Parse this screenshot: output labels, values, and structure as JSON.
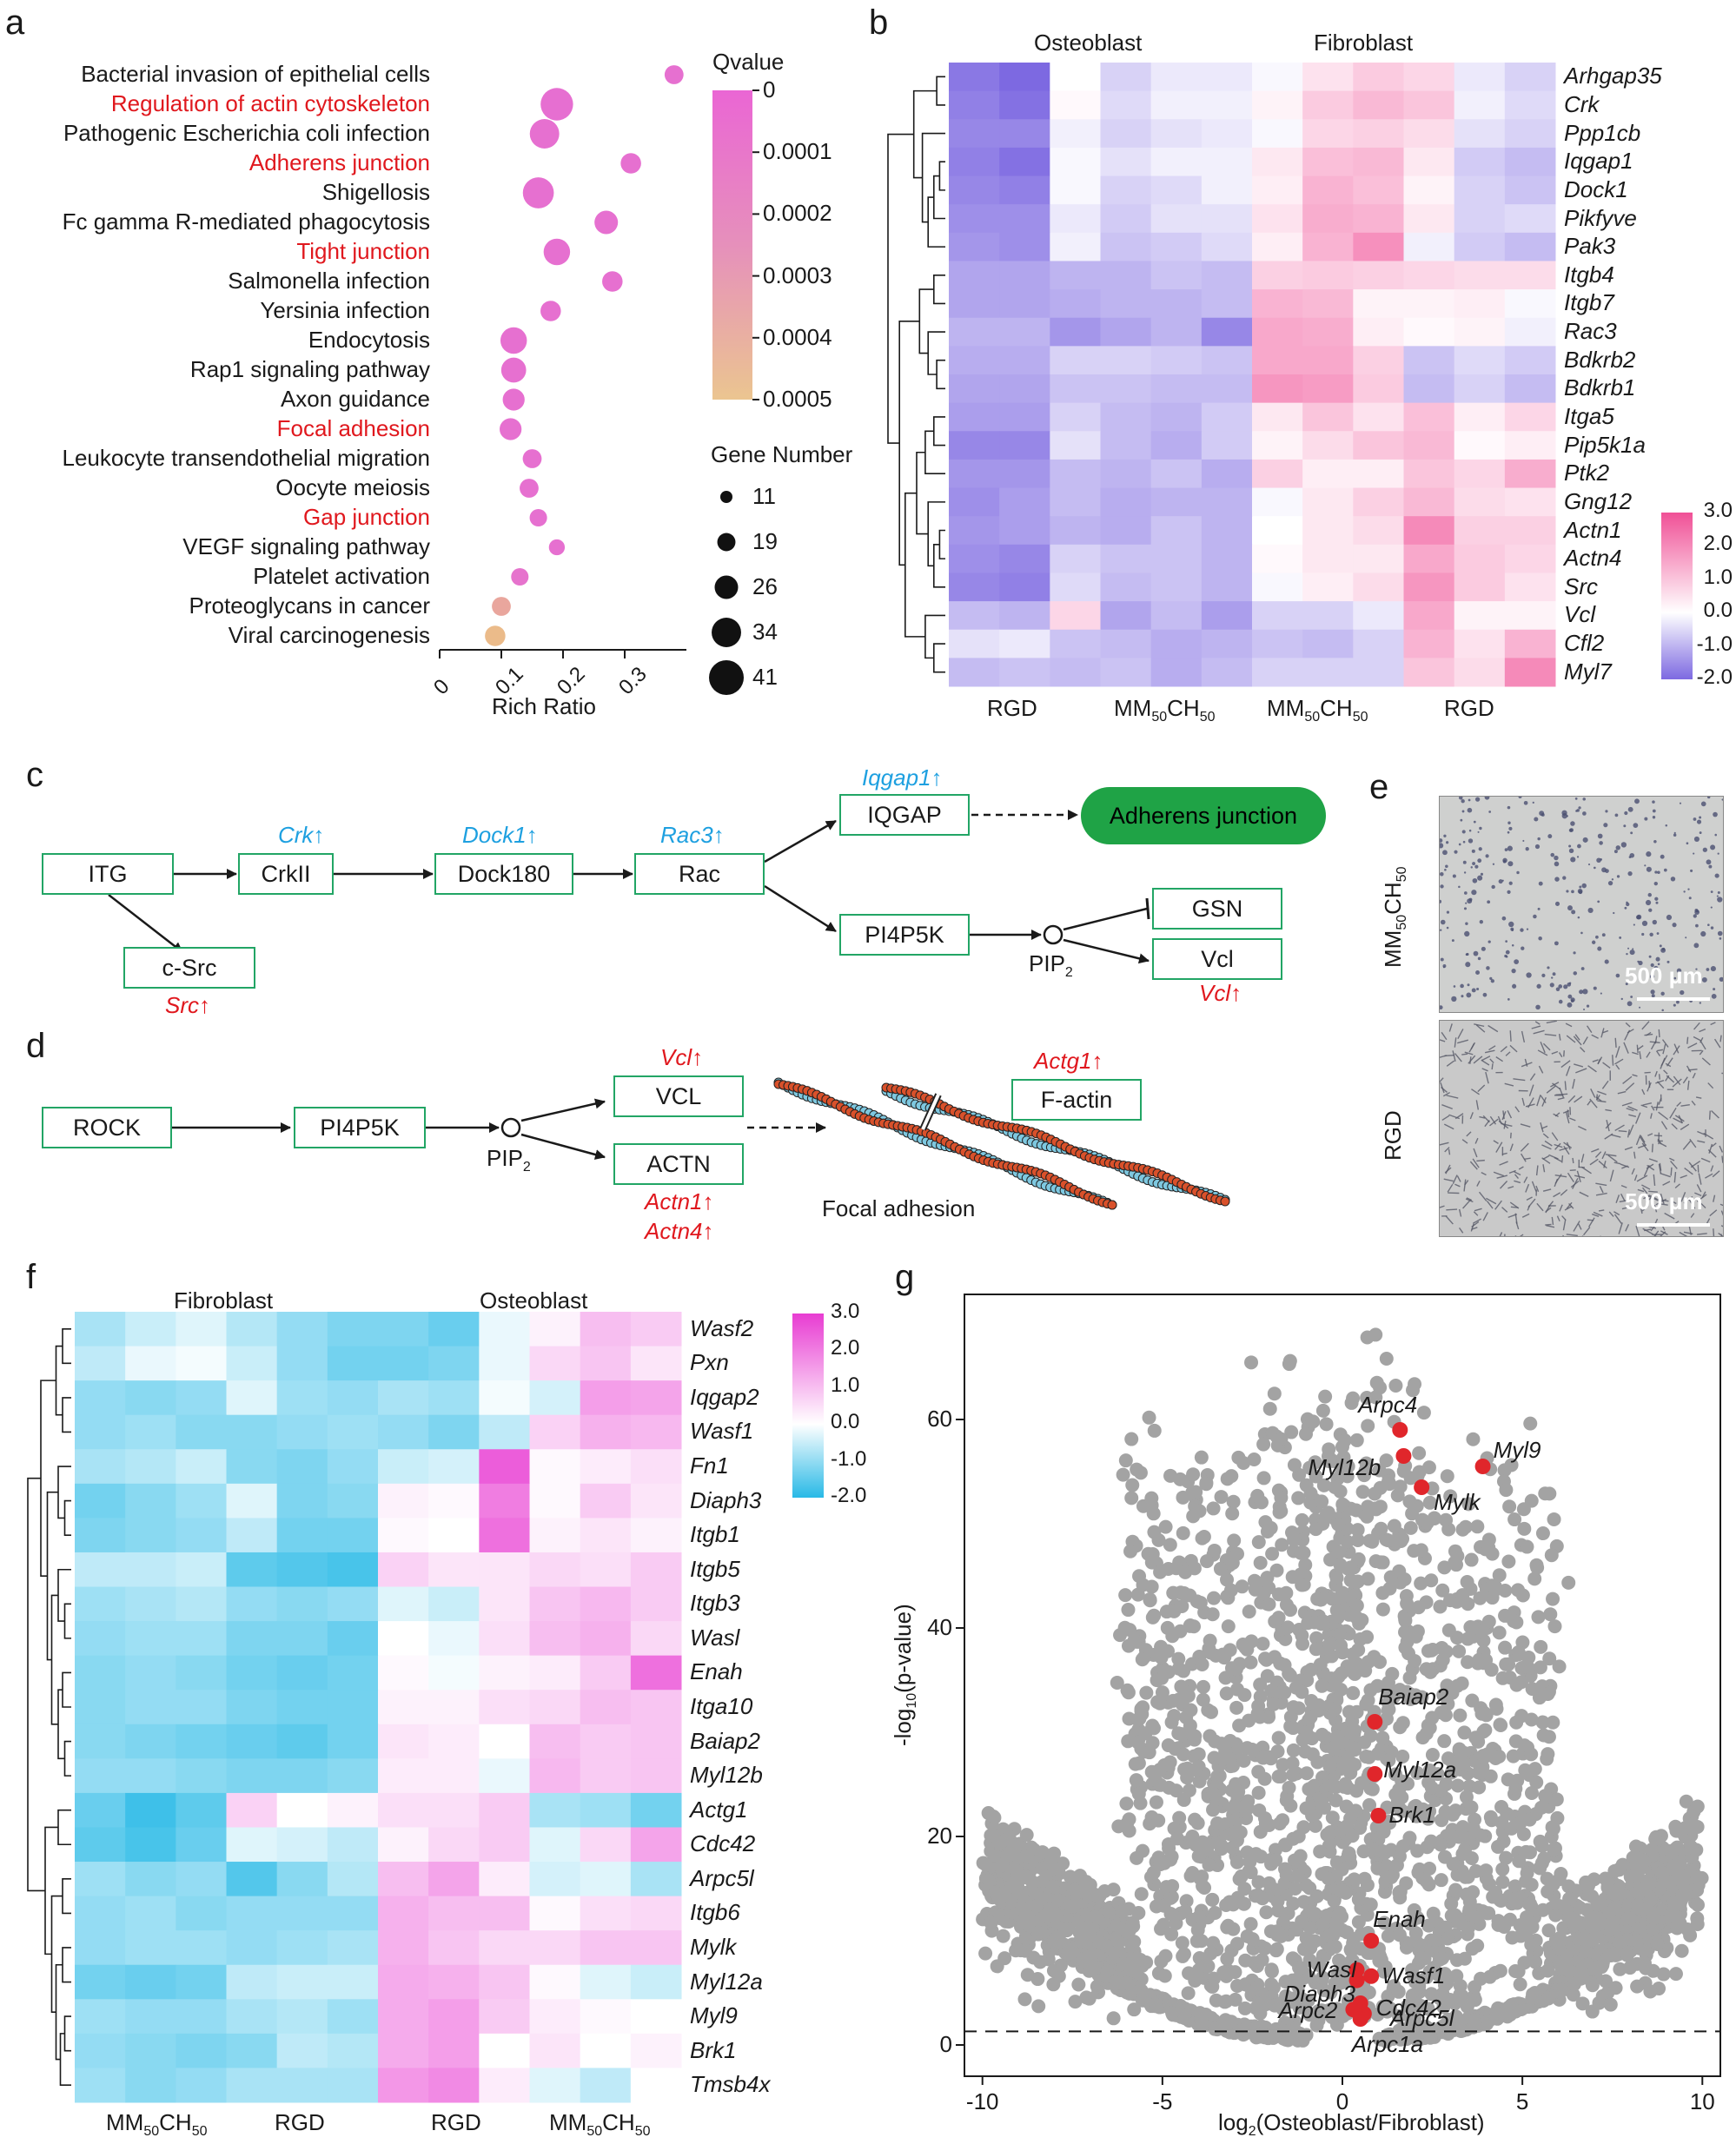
{
  "panels": {
    "a": "a",
    "b": "b",
    "c": "c",
    "d": "d",
    "e": "e",
    "f": "f",
    "g": "g"
  },
  "colors": {
    "red": "#e0181e",
    "blue": "#1ea0e0",
    "green": "#1fa346",
    "box_border": "#22a565"
  },
  "panel_a": {
    "chart_data": {
      "type": "scatter",
      "title": "",
      "xlabel": "Rich Ratio",
      "xticks": [
        "0",
        "0.1",
        "0.2",
        "0.3"
      ],
      "xlim": [
        0,
        0.4
      ],
      "terms": [
        "Bacterial invasion of epithelial cells",
        "Regulation of actin cytoskeleton",
        "Pathogenic Escherichia coli infection",
        "Adherens junction",
        "Shigellosis",
        "Fc gamma R-mediated phagocytosis",
        "Tight junction",
        "Salmonella infection",
        "Yersinia infection",
        "Endocytosis",
        "Rap1 signaling pathway",
        "Axon guidance",
        "Focal adhesion",
        "Leukocyte transendothelial migration",
        "Oocyte meiosis",
        "Gap junction",
        "VEGF signaling pathway",
        "Platelet activation",
        "Proteoglycans in cancer",
        "Viral carcinogenesis"
      ],
      "highlighted": [
        false,
        true,
        false,
        true,
        false,
        false,
        true,
        false,
        false,
        false,
        false,
        false,
        true,
        false,
        false,
        true,
        false,
        false,
        false,
        false
      ],
      "rich_ratio": [
        0.38,
        0.19,
        0.17,
        0.31,
        0.16,
        0.27,
        0.19,
        0.28,
        0.18,
        0.12,
        0.12,
        0.12,
        0.115,
        0.15,
        0.145,
        0.16,
        0.19,
        0.13,
        0.1,
        0.09
      ],
      "gene_number": [
        20,
        38,
        34,
        22,
        36,
        26,
        30,
        22,
        22,
        30,
        28,
        24,
        24,
        20,
        20,
        18,
        16,
        18,
        20,
        22
      ],
      "qvalue": [
        1e-05,
        5e-06,
        1e-05,
        1e-05,
        1e-05,
        1e-05,
        1e-05,
        1e-05,
        1e-05,
        1e-05,
        1e-05,
        1e-05,
        1e-05,
        1e-05,
        1e-05,
        1e-05,
        1e-05,
        3e-05,
        0.00033,
        0.00045
      ],
      "legend_color_title": "Qvalue",
      "legend_color_ticks": [
        "0",
        "0.0001",
        "0.0002",
        "0.0003",
        "0.0004",
        "0.0005"
      ],
      "legend_size_title": "Gene Number",
      "legend_size_ticks": [
        "11",
        "19",
        "26",
        "34",
        "41"
      ]
    }
  },
  "panel_b": {
    "group_top": [
      "Osteoblast",
      "Fibroblast"
    ],
    "group_bottom": [
      "RGD",
      "MM50CH50",
      "MM50CH50",
      "RGD"
    ],
    "genes": [
      "Arhgap35",
      "Crk",
      "Ppp1cb",
      "Iqgap1",
      "Dock1",
      "Pikfyve",
      "Pak3",
      "Itgb4",
      "Itgb7",
      "Rac3",
      "Bdkrb2",
      "Bdkrb1",
      "Itga5",
      "Pip5k1a",
      "Ptk2",
      "Gng12",
      "Actn1",
      "Actn4",
      "Src",
      "Vcl",
      "Cfl2",
      "Myl7"
    ],
    "scale_ticks": [
      "3.0",
      "2.0",
      "1.0",
      "0.0",
      "-1.0",
      "-2.0"
    ],
    "chart_data": {
      "type": "heatmap",
      "rows": [
        "Arhgap35",
        "Crk",
        "Ppp1cb",
        "Iqgap1",
        "Dock1",
        "Pikfyve",
        "Pak3",
        "Itgb4",
        "Itgb7",
        "Rac3",
        "Bdkrb2",
        "Bdkrb1",
        "Itga5",
        "Pip5k1a",
        "Ptk2",
        "Gng12",
        "Actn1",
        "Actn4",
        "Src",
        "Vcl",
        "Cfl2",
        "Myl7"
      ],
      "columns": 12,
      "values": [
        [
          -1.8,
          -2.0,
          0,
          -0.6,
          -0.3,
          -0.3,
          -0.1,
          0.5,
          0.9,
          0.7,
          -0.3,
          -0.6
        ],
        [
          -1.7,
          -1.9,
          0.1,
          -0.5,
          -0.2,
          -0.2,
          0.2,
          0.9,
          1.2,
          1.0,
          -0.2,
          -0.5
        ],
        [
          -1.6,
          -1.6,
          -0.2,
          -0.6,
          -0.4,
          -0.3,
          -0.1,
          0.7,
          0.8,
          0.6,
          -0.4,
          -0.6
        ],
        [
          -1.7,
          -1.9,
          -0.1,
          -0.4,
          -0.2,
          -0.2,
          0.4,
          1.1,
          1.2,
          0.4,
          -0.7,
          -0.9
        ],
        [
          -1.6,
          -1.7,
          -0.1,
          -0.6,
          -0.5,
          -0.2,
          0.3,
          1.3,
          1.1,
          0.2,
          -0.6,
          -0.8
        ],
        [
          -1.5,
          -1.5,
          -0.3,
          -0.7,
          -0.4,
          -0.4,
          0.5,
          1.4,
          1.3,
          0.4,
          -0.6,
          -0.5
        ],
        [
          -1.4,
          -1.5,
          -0.2,
          -0.8,
          -0.7,
          -0.5,
          0.3,
          1.3,
          1.9,
          -0.2,
          -0.7,
          -0.9
        ],
        [
          -1.2,
          -1.2,
          -1.0,
          -1.0,
          -0.8,
          -0.9,
          0.8,
          0.9,
          0.8,
          0.7,
          0.6,
          0.6
        ],
        [
          -1.2,
          -1.2,
          -1.1,
          -1.0,
          -1.0,
          -0.9,
          1.3,
          1.2,
          0.2,
          0.2,
          0.3,
          -0.1
        ],
        [
          -1.0,
          -1.0,
          -1.4,
          -1.2,
          -1.0,
          -1.6,
          1.5,
          1.4,
          0.3,
          0.1,
          0.2,
          -0.2
        ],
        [
          -1.1,
          -1.1,
          -0.6,
          -0.6,
          -0.7,
          -0.8,
          1.5,
          1.5,
          0.8,
          -0.8,
          -0.5,
          -0.7
        ],
        [
          -1.2,
          -1.2,
          -0.8,
          -0.8,
          -0.9,
          -0.9,
          1.8,
          1.7,
          0.9,
          -0.9,
          -0.6,
          -0.9
        ],
        [
          -1.3,
          -1.3,
          -0.6,
          -0.9,
          -1.0,
          -0.7,
          0.4,
          1.0,
          0.5,
          1.1,
          0.3,
          0.7
        ],
        [
          -1.6,
          -1.6,
          -0.4,
          -0.9,
          -1.1,
          -0.7,
          0.2,
          0.6,
          1.0,
          1.2,
          0.1,
          0.3
        ],
        [
          -1.4,
          -1.4,
          -0.9,
          -1.0,
          -0.8,
          -1.1,
          0.8,
          0.3,
          0.3,
          1.0,
          0.7,
          1.4
        ],
        [
          -1.5,
          -1.3,
          -0.9,
          -1.1,
          -1.0,
          -1.0,
          -0.1,
          0.4,
          0.8,
          1.2,
          0.6,
          0.5
        ],
        [
          -1.4,
          -1.3,
          -1.0,
          -1.1,
          -0.8,
          -1.0,
          0.0,
          0.4,
          0.6,
          2.0,
          0.8,
          0.8
        ],
        [
          -1.5,
          -1.6,
          -0.6,
          -0.8,
          -0.8,
          -1.0,
          0.1,
          0.4,
          0.4,
          1.5,
          0.9,
          0.7
        ],
        [
          -1.6,
          -1.7,
          -0.5,
          -0.9,
          -0.8,
          -1.0,
          -0.1,
          0.3,
          0.6,
          1.8,
          0.9,
          0.5
        ],
        [
          -0.9,
          -1.0,
          0.7,
          -1.2,
          -0.9,
          -1.3,
          -0.6,
          -0.6,
          -0.3,
          1.5,
          0.2,
          0.2
        ],
        [
          -0.4,
          -0.3,
          -0.8,
          -0.9,
          -1.1,
          -1.0,
          -0.8,
          -0.9,
          -0.6,
          1.3,
          0.5,
          1.3
        ],
        [
          -0.9,
          -0.8,
          -0.9,
          -0.8,
          -1.1,
          -0.9,
          -0.6,
          -0.6,
          -0.6,
          1.0,
          0.6,
          2.0
        ]
      ]
    }
  },
  "panel_c": {
    "boxes": {
      "itg": "ITG",
      "crkii": "CrkII",
      "dock180": "Dock180",
      "rac": "Rac",
      "iqgap": "IQGAP",
      "pi4p5k": "PI4P5K",
      "csrc": "c-Src",
      "gsn": "GSN",
      "vcl": "Vcl"
    },
    "adherens": "Adherens junction",
    "pip2": "PIP",
    "pip2_sub": "2",
    "genes": {
      "crk": "Crk↑",
      "dock1": "Dock1↑",
      "rac3": "Rac3↑",
      "iqgap1": "Iqgap1↑",
      "src": "Src↑",
      "vcl": "Vcl↑"
    }
  },
  "panel_d": {
    "boxes": {
      "rock": "ROCK",
      "pi4p5k": "PI4P5K",
      "vcl": "VCL",
      "actn": "ACTN",
      "factin": "F-actin"
    },
    "pip2": "PIP",
    "pip2_sub": "2",
    "genes": {
      "vcl": "Vcl↑",
      "actn1": "Actn1↑",
      "actn4": "Actn4↑",
      "actg1": "Actg1↑"
    },
    "focal": "Focal adhesion"
  },
  "panel_e": {
    "row1_label": "MM50CH50",
    "row2_label": "RGD",
    "scale1": "500 μm",
    "scale2": "500 μm"
  },
  "panel_f": {
    "group_top": [
      "Fibroblast",
      "Osteoblast"
    ],
    "group_bottom": [
      "MM50CH50",
      "RGD",
      "RGD",
      "MM50CH50"
    ],
    "genes": [
      "Wasf2",
      "Pxn",
      "Iqgap2",
      "Wasf1",
      "Fn1",
      "Diaph3",
      "Itgb1",
      "Itgb5",
      "Itgb3",
      "Wasl",
      "Enah",
      "Itga10",
      "Baiap2",
      "Myl12b",
      "Actg1",
      "Cdc42",
      "Arpc5l",
      "Itgb6",
      "Mylk",
      "Myl12a",
      "Myl9",
      "Brk1",
      "Tmsb4x"
    ],
    "scale_ticks": [
      "3.0",
      "2.0",
      "1.0",
      "0.0",
      "-1.0",
      "-2.0"
    ],
    "chart_data": {
      "type": "heatmap",
      "rows": [
        "Wasf2",
        "Pxn",
        "Iqgap2",
        "Wasf1",
        "Fn1",
        "Diaph3",
        "Itgb1",
        "Itgb5",
        "Itgb3",
        "Wasl",
        "Enah",
        "Itga10",
        "Baiap2",
        "Myl12b",
        "Actg1",
        "Cdc42",
        "Arpc5l",
        "Itgb6",
        "Mylk",
        "Myl12a",
        "Myl9",
        "Brk1",
        "Tmsb4x"
      ],
      "columns": 12,
      "values": [
        [
          -0.8,
          -0.5,
          -0.3,
          -0.7,
          -1.0,
          -1.2,
          -1.2,
          -1.4,
          -0.2,
          0.2,
          1.0,
          0.8
        ],
        [
          -0.6,
          -0.2,
          -0.1,
          -0.5,
          -1.0,
          -1.3,
          -1.3,
          -1.2,
          -0.2,
          0.6,
          0.9,
          0.4
        ],
        [
          -1.0,
          -1.1,
          -1.0,
          -0.3,
          -0.9,
          -1.0,
          -0.8,
          -0.9,
          -0.1,
          -0.4,
          1.5,
          1.4
        ],
        [
          -1.0,
          -0.9,
          -1.1,
          -1.1,
          -1.0,
          -0.9,
          -1.0,
          -1.2,
          -0.6,
          0.7,
          1.2,
          1.1
        ],
        [
          -0.8,
          -0.7,
          -0.5,
          -1.1,
          -1.2,
          -1.0,
          -0.5,
          -0.4,
          2.5,
          0.1,
          0.3,
          0.5
        ],
        [
          -1.3,
          -1.1,
          -0.9,
          -0.3,
          -1.2,
          -1.1,
          0.2,
          0.1,
          2.0,
          0.1,
          0.8,
          0.4
        ],
        [
          -1.2,
          -1.1,
          -1.0,
          -0.6,
          -1.3,
          -1.3,
          0.1,
          0.0,
          2.2,
          0.2,
          0.4,
          0.2
        ],
        [
          -0.6,
          -0.6,
          -0.5,
          -1.5,
          -1.6,
          -1.7,
          0.7,
          0.4,
          0.4,
          0.6,
          0.5,
          0.8
        ],
        [
          -0.9,
          -0.8,
          -0.7,
          -1.0,
          -1.1,
          -1.0,
          -0.3,
          -0.5,
          0.4,
          0.9,
          1.1,
          0.8
        ],
        [
          -1.0,
          -0.9,
          -0.9,
          -1.2,
          -1.2,
          -1.4,
          0.0,
          -0.2,
          0.5,
          1.0,
          1.2,
          0.6
        ],
        [
          -1.1,
          -1.0,
          -1.1,
          -1.3,
          -1.4,
          -1.3,
          0.1,
          -0.1,
          0.2,
          0.3,
          0.8,
          2.2
        ],
        [
          -1.1,
          -1.0,
          -1.0,
          -1.2,
          -1.3,
          -1.3,
          0.2,
          0.2,
          0.5,
          0.6,
          1.0,
          0.9
        ],
        [
          -1.1,
          -1.2,
          -1.3,
          -1.4,
          -1.5,
          -1.3,
          0.4,
          0.3,
          0.0,
          1.0,
          0.8,
          0.9
        ],
        [
          -1.0,
          -1.0,
          -1.1,
          -1.2,
          -1.2,
          -1.1,
          0.3,
          0.3,
          -0.2,
          1.1,
          0.8,
          0.9
        ],
        [
          -1.4,
          -1.8,
          -1.5,
          0.7,
          0.0,
          0.2,
          0.5,
          0.5,
          0.8,
          -0.8,
          -0.9,
          -1.3
        ],
        [
          -1.5,
          -1.7,
          -1.4,
          -0.3,
          -0.4,
          -0.6,
          0.2,
          0.6,
          0.8,
          -0.3,
          0.6,
          1.4
        ],
        [
          -0.9,
          -1.1,
          -1.0,
          -1.6,
          -1.1,
          -0.7,
          1.0,
          1.4,
          0.3,
          -0.4,
          -0.3,
          -0.8
        ],
        [
          -1.0,
          -0.9,
          -1.1,
          -1.0,
          -1.0,
          -1.0,
          1.2,
          1.0,
          1.0,
          0.1,
          0.5,
          0.6
        ],
        [
          -1.0,
          -0.9,
          -0.9,
          -1.0,
          -0.9,
          -0.8,
          1.2,
          0.9,
          0.6,
          0.6,
          0.9,
          0.9
        ],
        [
          -1.3,
          -1.4,
          -1.3,
          -0.6,
          -0.5,
          -0.5,
          1.3,
          1.2,
          0.9,
          0.1,
          -0.3,
          -0.5
        ],
        [
          -0.9,
          -1.0,
          -1.0,
          -0.8,
          -0.7,
          -0.9,
          1.3,
          1.5,
          0.8,
          0.3,
          0.1,
          0.0
        ],
        [
          -1.0,
          -1.1,
          -1.2,
          -1.1,
          -0.6,
          -0.7,
          1.3,
          1.5,
          0.0,
          0.4,
          0.0,
          0.2
        ],
        [
          -0.9,
          -1.1,
          -1.0,
          -0.8,
          -0.8,
          -0.8,
          1.6,
          1.8,
          0.3,
          -0.3,
          -0.6,
          0.0
        ]
      ]
    }
  },
  "panel_g": {
    "chart_data": {
      "type": "scatter",
      "xlabel": "log2(Osteoblast/Fibroblast)",
      "ylabel": "-log10(p-value)",
      "xlim": [
        -10.5,
        10.5
      ],
      "ylim": [
        -3,
        72
      ],
      "xticks": [
        -10,
        -5,
        0,
        5,
        10
      ],
      "yticks": [
        0,
        20,
        40,
        60
      ],
      "threshold": 1.3,
      "highlighted_points": [
        {
          "gene": "Arpc4",
          "x": 1.6,
          "y": 59.0
        },
        {
          "gene": "Myl12b",
          "x": 1.7,
          "y": 56.5
        },
        {
          "gene": "Myl9",
          "x": 3.9,
          "y": 55.5
        },
        {
          "gene": "Mylk",
          "x": 2.2,
          "y": 53.5
        },
        {
          "gene": "Baiap2",
          "x": 0.9,
          "y": 31.0
        },
        {
          "gene": "Myl12a",
          "x": 0.9,
          "y": 26.0
        },
        {
          "gene": "Brk1",
          "x": 1.0,
          "y": 22.0
        },
        {
          "gene": "Enah",
          "x": 0.8,
          "y": 10.0
        },
        {
          "gene": "Wasl",
          "x": 0.4,
          "y": 7.2
        },
        {
          "gene": "Wasf1",
          "x": 0.8,
          "y": 6.6
        },
        {
          "gene": "Diaph3",
          "x": 0.4,
          "y": 6.2
        },
        {
          "gene": "Cdc42",
          "x": 0.5,
          "y": 4.0
        },
        {
          "gene": "Arpc5l",
          "x": 0.6,
          "y": 3.0
        },
        {
          "gene": "Arpc2",
          "x": 0.3,
          "y": 3.4
        },
        {
          "gene": "Arpc1a",
          "x": 0.5,
          "y": 2.5
        }
      ]
    }
  }
}
